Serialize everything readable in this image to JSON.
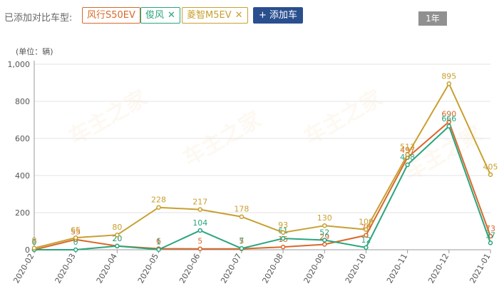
{
  "toolbar": {
    "compare_label": "已添加对比车型:",
    "add_button": "+ 添加车",
    "period": "1年"
  },
  "chart_data": {
    "type": "line",
    "unit_label": "(单位：辆)",
    "categories": [
      "2020-02",
      "2020-03",
      "2020-04",
      "2020-05",
      "2020-06",
      "2020-07",
      "2020-08",
      "2020-09",
      "2020-10",
      "2020-11",
      "2020-12",
      "2021-01"
    ],
    "ylim": [
      0,
      1000
    ],
    "yticks": [
      0,
      200,
      400,
      600,
      800,
      1000
    ],
    "ytick_labels": [
      "0",
      "200",
      "400",
      "600",
      "800",
      "1,000"
    ],
    "grid": true,
    "series": [
      {
        "name": "风行S50EV",
        "color": "#d8692a",
        "closable": false,
        "values": [
          0,
          55,
          20,
          6,
          5,
          5,
          15,
          29,
          78,
          497,
          690,
          73
        ]
      },
      {
        "name": "俊风",
        "color": "#2aa57d",
        "closable": true,
        "values": [
          0,
          0,
          20,
          1,
          104,
          7,
          61,
          52,
          12,
          458,
          666,
          37
        ]
      },
      {
        "name": "菱智M5EV",
        "color": "#c8a030",
        "closable": true,
        "values": [
          9,
          65,
          80,
          228,
          217,
          178,
          93,
          130,
          109,
          513,
          895,
          405
        ]
      }
    ]
  }
}
